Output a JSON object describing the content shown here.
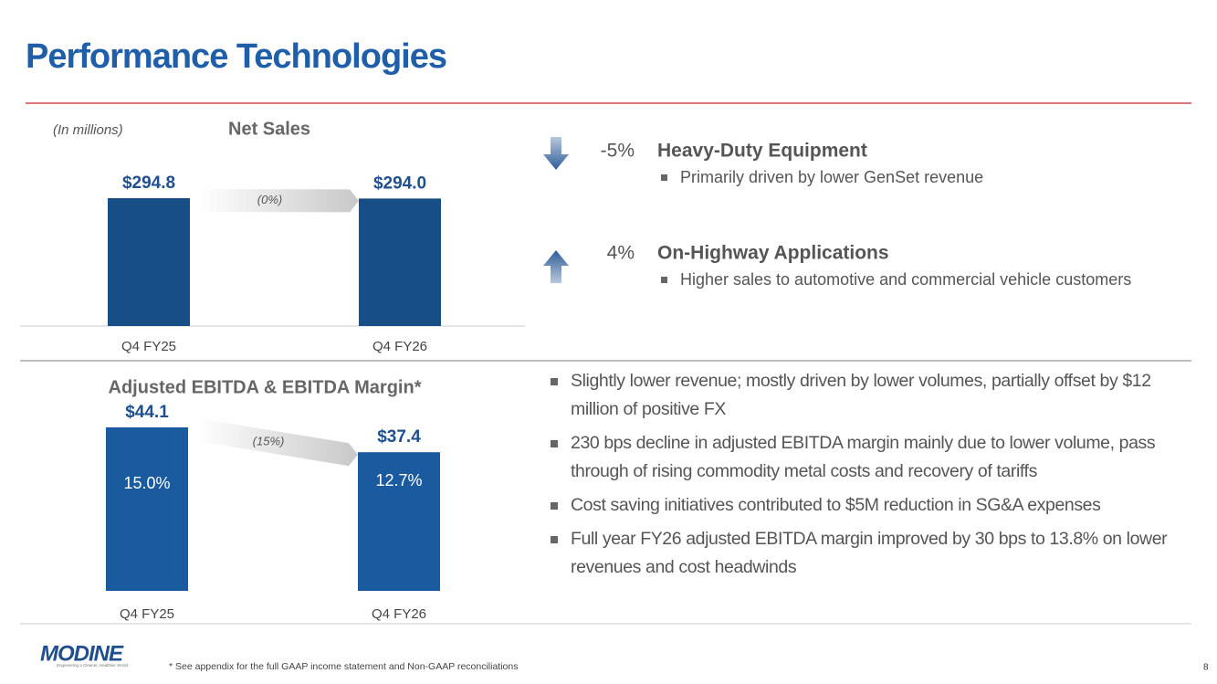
{
  "title": "Performance Technologies",
  "unit_note": "(In millions)",
  "chart_data": [
    {
      "type": "bar",
      "title": "Net Sales",
      "categories": [
        "Q4 FY25",
        "Q4 FY26"
      ],
      "values": [
        294.8,
        294.0
      ],
      "value_labels": [
        "$294.8",
        "$294.0"
      ],
      "color": "#174e86",
      "change_label": "(0%)"
    },
    {
      "type": "bar",
      "title": "Adjusted EBITDA & EBITDA Margin*",
      "categories": [
        "Q4 FY25",
        "Q4 FY26"
      ],
      "values": [
        44.1,
        37.4
      ],
      "value_labels": [
        "$44.1",
        "$37.4"
      ],
      "color": "#1a5a9e",
      "change_label": "(15%)",
      "margins": {
        "values": [
          15.0,
          12.7
        ],
        "value_labels": [
          "15.0%",
          "12.7%"
        ]
      }
    }
  ],
  "drivers": [
    {
      "direction": "down",
      "change": "-5%",
      "name": "Heavy-Duty Equipment",
      "detail": "Primarily driven by lower GenSet revenue"
    },
    {
      "direction": "up",
      "change": "4%",
      "name": "On-Highway Applications",
      "detail": "Higher sales to automotive and commercial vehicle customers"
    }
  ],
  "bullets": [
    "Slightly lower revenue; mostly driven by lower volumes, partially offset by $12 million of positive FX",
    "230 bps decline in adjusted EBITDA margin mainly due to lower volume, pass through of rising commodity metal costs and recovery of tariffs",
    "Cost saving initiatives contributed to $5M reduction in SG&A expenses",
    "Full year FY26 adjusted EBITDA margin improved by 30 bps to 13.8% on lower revenues and cost headwinds"
  ],
  "logo": {
    "name": "MODINE",
    "tagline": "Engineering a Cleaner, Healthier World"
  },
  "footnote": "* See appendix for the full GAAP income statement and Non-GAAP reconciliations",
  "page_number": "8"
}
